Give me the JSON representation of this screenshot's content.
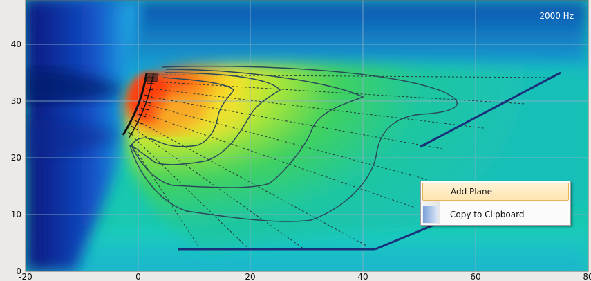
{
  "plot": {
    "frequency_label": "2000 Hz",
    "x_ticks": [
      "-20",
      "0",
      "20",
      "40",
      "60",
      "80"
    ],
    "y_ticks": [
      "0",
      "10",
      "20",
      "30",
      "40"
    ],
    "colors": {
      "background_edge": "#0a1f8e",
      "field_mid": "#2fd2a0",
      "hot": "#ff4a10",
      "contour": "#2a4a5a",
      "plane": "#1a2f7a",
      "grid": "#8fb0c8"
    }
  },
  "context_menu": {
    "items": [
      {
        "label": "Add Plane",
        "highlighted": true,
        "icon": ""
      },
      {
        "label": "Copy to Clipboard",
        "highlighted": false,
        "icon": "clipboard-icon"
      }
    ]
  }
}
